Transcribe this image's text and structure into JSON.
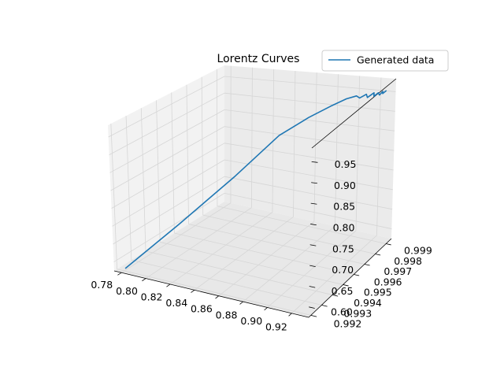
{
  "chart_data": {
    "type": "line",
    "projection": "3d",
    "title": "Lorentz Curves",
    "xlabel": "",
    "ylabel": "",
    "zlabel": "",
    "grid": true,
    "legend_position": "top-right",
    "x_ticks": [
      "0.78",
      "0.80",
      "0.82",
      "0.84",
      "0.86",
      "0.88",
      "0.90",
      "0.92"
    ],
    "y_ticks": [
      "0.992",
      "0.993",
      "0.994",
      "0.995",
      "0.996",
      "0.997",
      "0.998",
      "0.999"
    ],
    "z_ticks": [
      "0.60",
      "0.65",
      "0.70",
      "0.75",
      "0.80",
      "0.85",
      "0.90",
      "0.95"
    ],
    "series": [
      {
        "name": "Generated data",
        "color": "#1f77b4",
        "points": [
          {
            "x": 0.78,
            "y": 0.9921,
            "z": 0.58
          },
          {
            "x": 0.81,
            "y": 0.9934,
            "z": 0.69
          },
          {
            "x": 0.84,
            "y": 0.995,
            "z": 0.8
          },
          {
            "x": 0.86,
            "y": 0.9966,
            "z": 0.88
          },
          {
            "x": 0.875,
            "y": 0.9976,
            "z": 0.91
          },
          {
            "x": 0.888,
            "y": 0.9982,
            "z": 0.93
          },
          {
            "x": 0.898,
            "y": 0.9986,
            "z": 0.943
          },
          {
            "x": 0.905,
            "y": 0.9988,
            "z": 0.948
          },
          {
            "x": 0.909,
            "y": 0.9987,
            "z": 0.946
          },
          {
            "x": 0.913,
            "y": 0.9989,
            "z": 0.952
          },
          {
            "x": 0.916,
            "y": 0.9987,
            "z": 0.949
          },
          {
            "x": 0.919,
            "y": 0.999,
            "z": 0.955
          },
          {
            "x": 0.921,
            "y": 0.9988,
            "z": 0.951
          },
          {
            "x": 0.923,
            "y": 0.999,
            "z": 0.956
          },
          {
            "x": 0.925,
            "y": 0.9989,
            "z": 0.953
          },
          {
            "x": 0.926,
            "y": 0.9991,
            "z": 0.958
          },
          {
            "x": 0.927,
            "y": 0.999,
            "z": 0.955
          },
          {
            "x": 0.929,
            "y": 0.9991,
            "z": 0.96
          }
        ]
      }
    ]
  }
}
